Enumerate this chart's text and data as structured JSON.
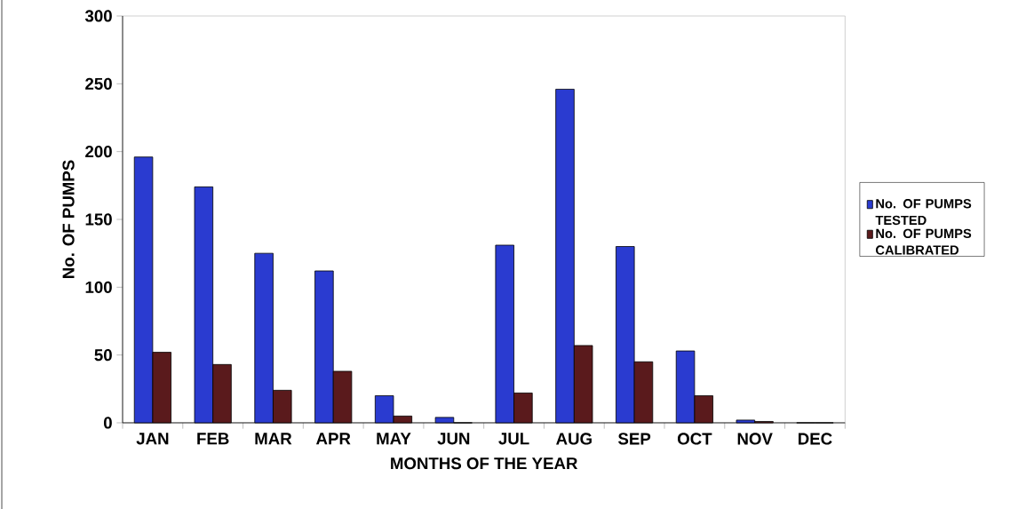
{
  "chart_data": {
    "type": "bar",
    "xlabel": "MONTHS OF THE YEAR",
    "ylabel": "No. OF PUMPS",
    "categories": [
      "JAN",
      "FEB",
      "MAR",
      "APR",
      "MAY",
      "JUN",
      "JUL",
      "AUG",
      "SEP",
      "OCT",
      "NOV",
      "DEC"
    ],
    "series": [
      {
        "name": "No. OF PUMPS TESTED",
        "color": "#2a3bd0",
        "values": [
          196,
          174,
          125,
          112,
          20,
          4,
          131,
          246,
          130,
          53,
          2,
          0
        ]
      },
      {
        "name": "No. OF PUMPS CALIBRATED",
        "color": "#5a1a1c",
        "values": [
          52,
          43,
          24,
          38,
          5,
          0,
          22,
          57,
          45,
          20,
          1,
          0
        ]
      }
    ],
    "ylim": [
      0,
      300
    ],
    "yticks": [
      0,
      50,
      100,
      150,
      200,
      250,
      300
    ],
    "grid": false,
    "legend": "right"
  }
}
